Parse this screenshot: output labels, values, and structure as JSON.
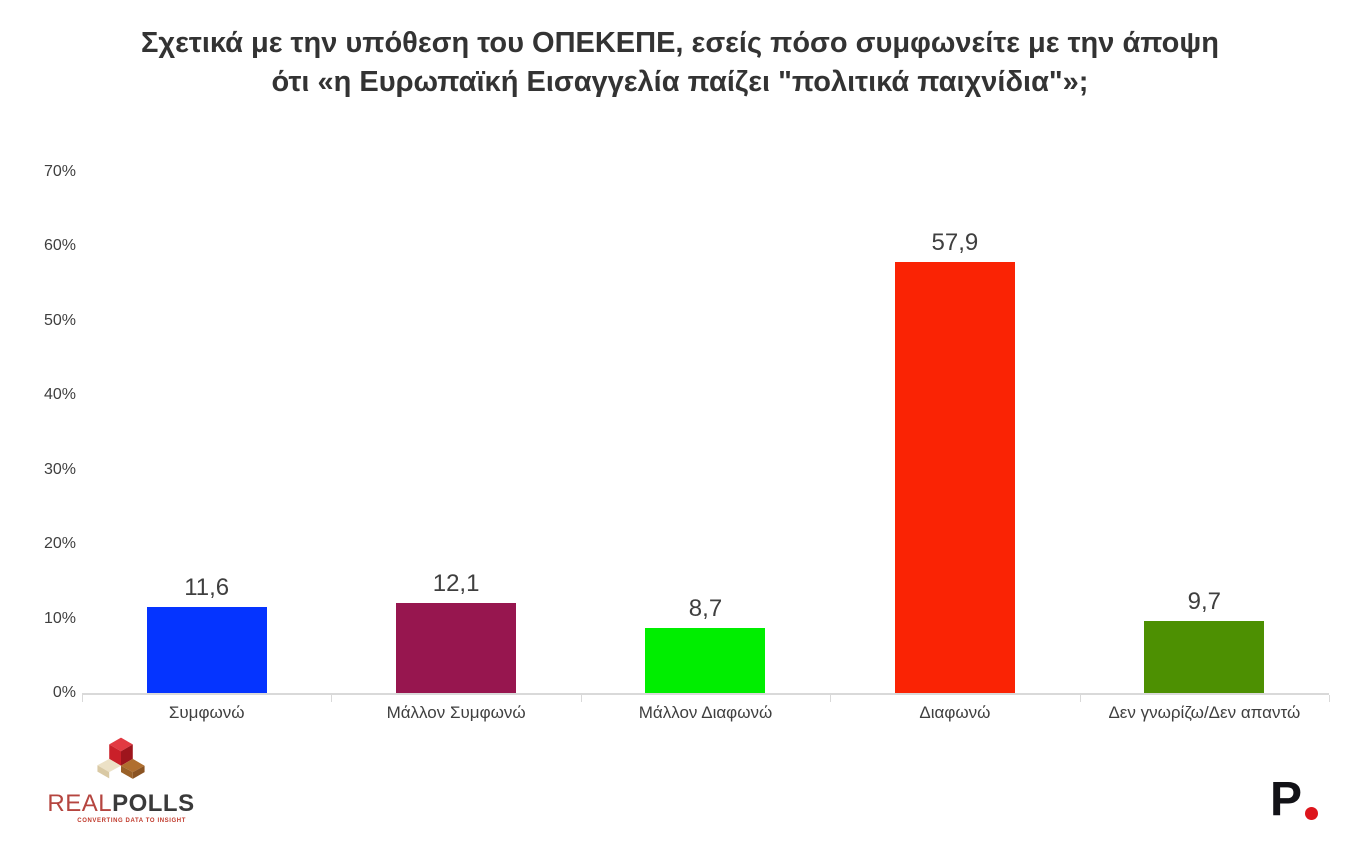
{
  "title": {
    "line1": "Σχετικά με την υπόθεση του ΟΠΕΚΕΠΕ, εσείς πόσο συμφωνείτε με την άποψη",
    "line2": "ότι «η Ευρωπαϊκή Εισαγγελία παίζει \"πολιτικά παιχνίδια\"»;"
  },
  "chart_data": {
    "type": "bar",
    "title": "Σχετικά με την υπόθεση του ΟΠΕΚΕΠΕ, εσείς πόσο συμφωνείτε με την άποψη ότι «η Ευρωπαϊκή Εισαγγελία παίζει \"πολιτικά παιχνίδια\"»;",
    "categories": [
      "Συμφωνώ",
      "Μάλλον Συμφωνώ",
      "Μάλλον Διαφωνώ",
      "Διαφωνώ",
      "Δεν γνωρίζω/Δεν απαντώ"
    ],
    "values": [
      11.6,
      12.1,
      8.7,
      57.9,
      9.7
    ],
    "value_labels": [
      "11,6",
      "12,1",
      "8,7",
      "57,9",
      "9,7"
    ],
    "bar_colors": [
      "#0534ff",
      "#97164f",
      "#00ee00",
      "#fa2304",
      "#4d9002"
    ],
    "xlabel": "",
    "ylabel": "",
    "ylim": [
      0,
      70
    ],
    "yticks": [
      "70%",
      "60%",
      "50%",
      "40%",
      "30%",
      "20%",
      "10%",
      "0%"
    ],
    "grid": false,
    "legend": false
  },
  "footer": {
    "brand_left": {
      "real": "REAL",
      "polls": "POLLS",
      "tagline": "CONVERTING DATA TO INSIGHT"
    },
    "brand_right": {
      "letter": "P"
    }
  },
  "colors": {
    "axis_line": "#d9d9d9",
    "text": "#3f3f3f",
    "brand_real": "#b5453f",
    "brand_polls": "#3a3a3a",
    "p_dot_red": "#dd151c"
  }
}
